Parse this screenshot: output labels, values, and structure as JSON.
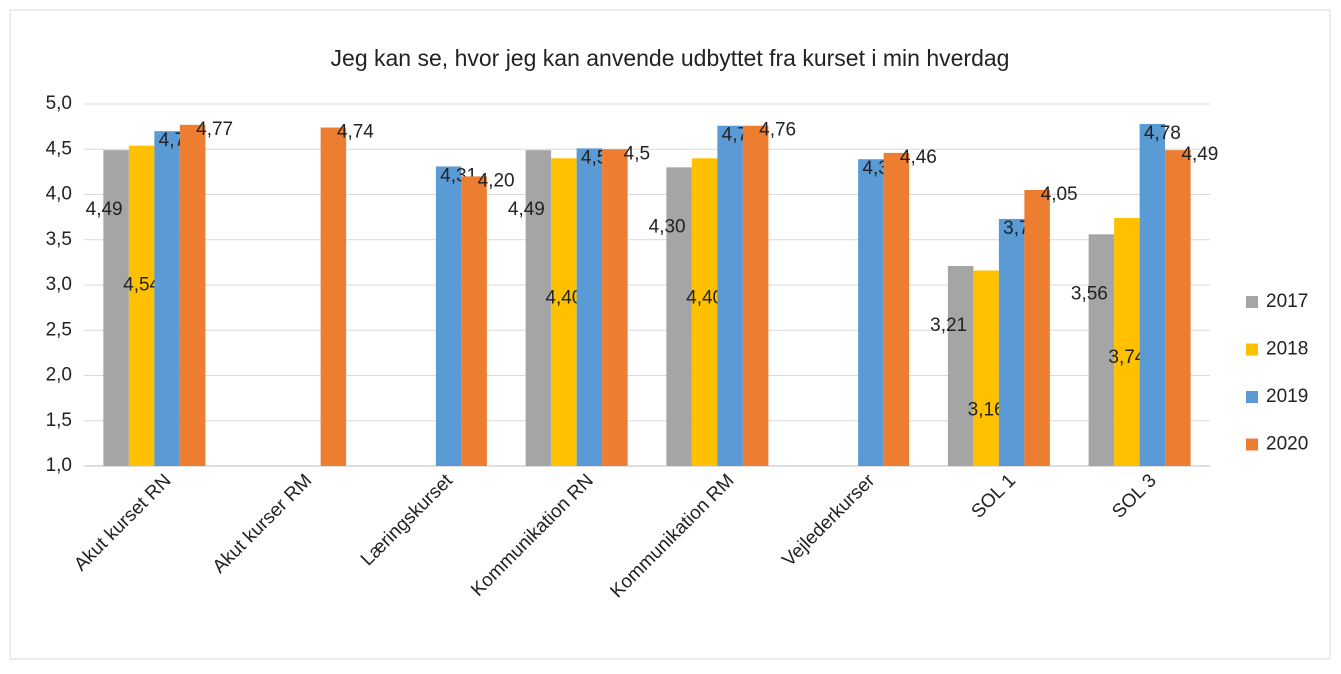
{
  "chart_data": {
    "type": "bar",
    "title": "Jeg kan se, hvor jeg kan anvende udbyttet fra kurset i min hverdag",
    "categories": [
      "Akut kurset RN",
      "Akut kurser RM",
      "Læringskurset",
      "Kommunikation RN",
      "Kommunikation RM",
      "Vejlederkurser",
      "SOL 1",
      "SOL 3"
    ],
    "series": [
      {
        "name": "2017",
        "color": "#a5a5a5",
        "values": [
          4.49,
          null,
          null,
          4.49,
          4.3,
          null,
          3.21,
          3.56
        ],
        "value_labels": [
          "4,49",
          null,
          null,
          "4,49",
          "4,30",
          null,
          "3,21",
          "3,56"
        ]
      },
      {
        "name": "2018",
        "color": "#ffc000",
        "values": [
          4.54,
          null,
          null,
          4.4,
          4.4,
          null,
          3.16,
          3.74
        ],
        "value_labels": [
          "4,54",
          null,
          null,
          "4,40",
          "4,40",
          null,
          "3,16",
          "3,74"
        ]
      },
      {
        "name": "2019",
        "color": "#5b9bd5",
        "values": [
          4.7,
          null,
          4.31,
          4.51,
          4.76,
          4.39,
          3.73,
          4.78
        ],
        "value_labels": [
          "4,70",
          null,
          "4,31",
          "4,51",
          "4,76",
          "4,39",
          "3,73",
          "4,78"
        ]
      },
      {
        "name": "2020",
        "color": "#ed7d31",
        "values": [
          4.77,
          4.74,
          4.2,
          4.5,
          4.76,
          4.46,
          4.05,
          4.49
        ],
        "value_labels": [
          "4,77",
          "4,74",
          "4,20",
          "4,5",
          "4,76",
          "4,46",
          "4,05",
          "4,49"
        ]
      }
    ],
    "ylim": [
      1.0,
      5.0
    ],
    "yticks": [
      {
        "value": 1.0,
        "label": "1,0"
      },
      {
        "value": 1.5,
        "label": "1,5"
      },
      {
        "value": 2.0,
        "label": "2,0"
      },
      {
        "value": 2.5,
        "label": "2,5"
      },
      {
        "value": 3.0,
        "label": "3,0"
      },
      {
        "value": 3.5,
        "label": "3,5"
      },
      {
        "value": 4.0,
        "label": "4,0"
      },
      {
        "value": 4.5,
        "label": "4,5"
      },
      {
        "value": 5.0,
        "label": "5,0"
      }
    ],
    "grid": true,
    "legend": "right"
  }
}
